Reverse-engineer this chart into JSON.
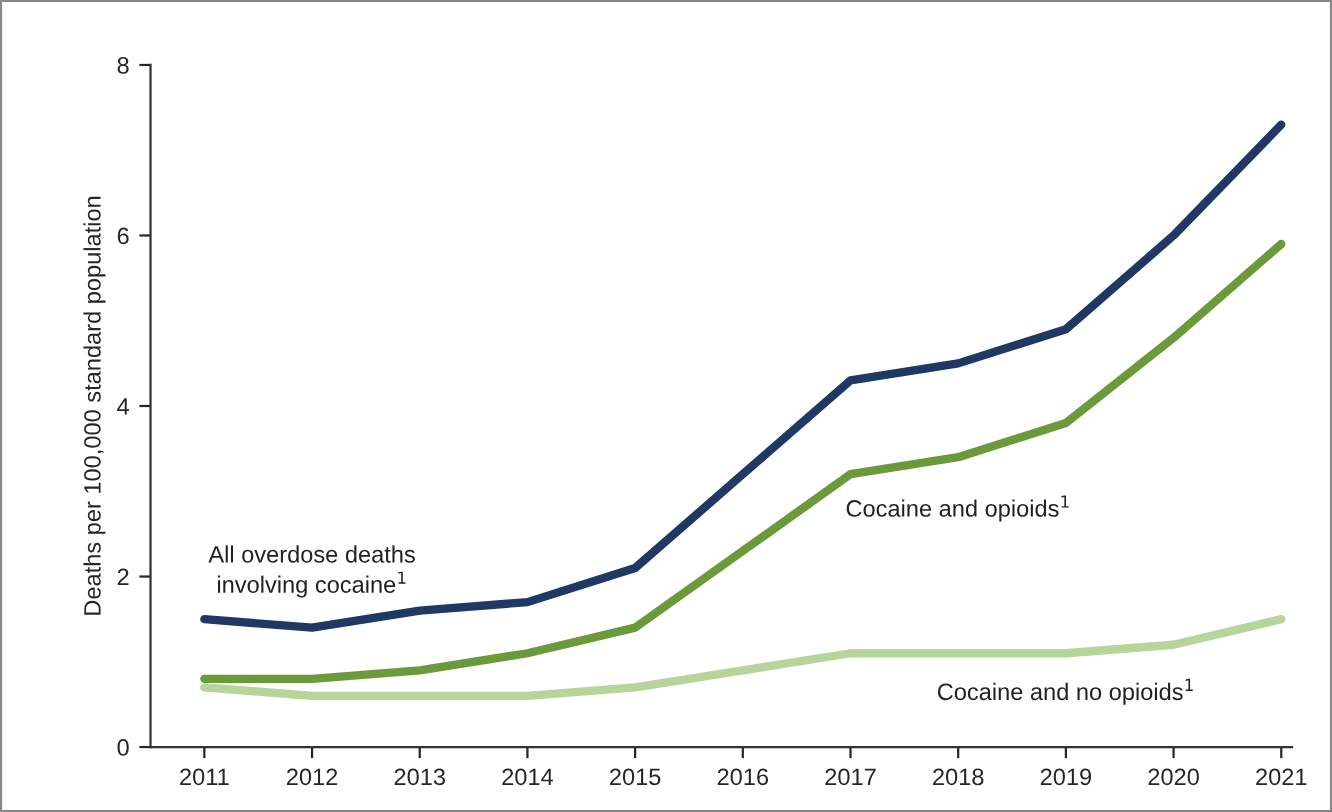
{
  "chart_data": {
    "type": "line",
    "ylabel": "Deaths per 100,000 standard population",
    "x": [
      2011,
      2012,
      2013,
      2014,
      2015,
      2016,
      2017,
      2018,
      2019,
      2020,
      2021
    ],
    "series": [
      {
        "name": "All overdose deaths\ninvolving cocaine$^{1}$",
        "color": "#1f3864",
        "values": [
          1.5,
          1.4,
          1.6,
          1.7,
          2.1,
          3.2,
          4.3,
          4.5,
          4.9,
          6.0,
          7.3
        ]
      },
      {
        "name": "Cocaine and opioids$^{1}$",
        "color": "#6a9a3a",
        "values": [
          0.8,
          0.8,
          0.9,
          1.1,
          1.4,
          2.3,
          3.2,
          3.4,
          3.8,
          4.8,
          5.9
        ]
      },
      {
        "name": "Cocaine and no opioids$^{1}$",
        "color": "#b7d49b",
        "values": [
          0.7,
          0.6,
          0.6,
          0.6,
          0.7,
          0.9,
          1.1,
          1.1,
          1.1,
          1.2,
          1.5
        ]
      }
    ],
    "xlim": [
      2010.5,
      2021.1
    ],
    "xticks": [
      2011,
      2012,
      2013,
      2014,
      2015,
      2016,
      2017,
      2018,
      2019,
      2020,
      2021
    ],
    "ylim": [
      0,
      8
    ],
    "yticks": [
      0,
      2,
      4,
      6,
      8
    ],
    "grid": false,
    "legend": false,
    "marker": "none",
    "line_style": "solid"
  }
}
